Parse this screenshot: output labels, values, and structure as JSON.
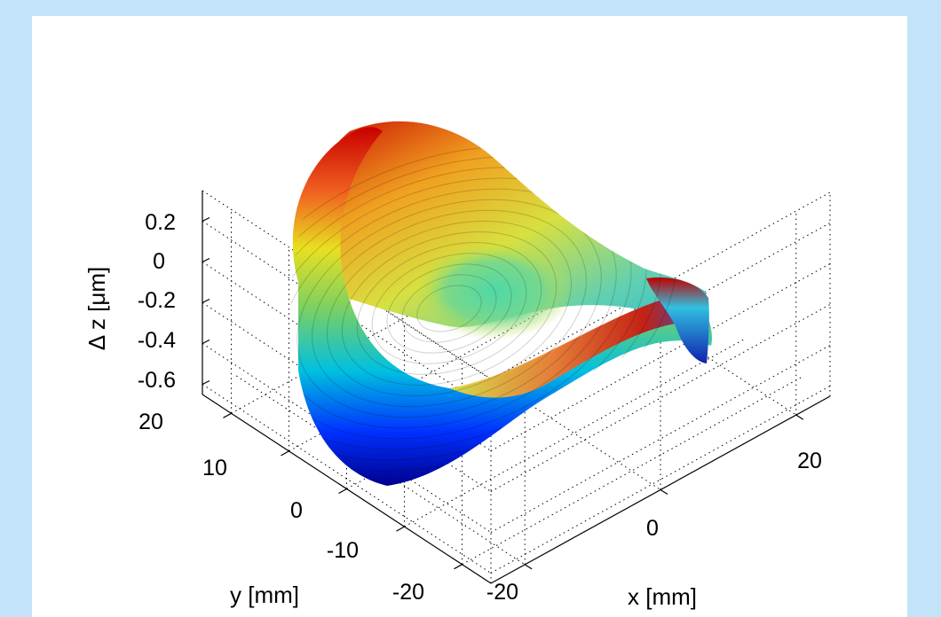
{
  "chart_data": {
    "type": "surface",
    "title": "",
    "xlabel": "x [mm]",
    "ylabel": "y [mm]",
    "zlabel": "Δ z [μm]",
    "x_ticks": [
      {
        "value": -20,
        "label": "-20"
      },
      {
        "value": 0,
        "label": "0"
      },
      {
        "value": 20,
        "label": "20"
      }
    ],
    "y_ticks": [
      {
        "value": -20,
        "label": "-20"
      },
      {
        "value": -10,
        "label": "-10"
      },
      {
        "value": 0,
        "label": "0"
      },
      {
        "value": 10,
        "label": "10"
      },
      {
        "value": 20,
        "label": "20"
      }
    ],
    "z_ticks": [
      {
        "value": -0.6,
        "label": "-0.6"
      },
      {
        "value": -0.4,
        "label": "-0.4"
      },
      {
        "value": -0.2,
        "label": "-0.2"
      },
      {
        "value": 0,
        "label": "0"
      },
      {
        "value": 0.2,
        "label": "0.2"
      }
    ],
    "xlim": [
      -25,
      25
    ],
    "ylim": [
      -25,
      25
    ],
    "zlim": [
      -0.65,
      0.35
    ],
    "grid": "dotted",
    "colormap": [
      "#00008f",
      "#0000ff",
      "#00ffff",
      "#ffff00",
      "#ff0000",
      "#800000"
    ],
    "surface_shape": "saddle (astigmatic deformation) over circular aperture",
    "surface_samples": [
      {
        "x": 0,
        "y": 0,
        "z": -0.05
      },
      {
        "x": -22,
        "y": 0,
        "z": 0.3
      },
      {
        "x": 22,
        "y": 0,
        "z": 0.3
      },
      {
        "x": 0,
        "y": -22,
        "z": -0.6
      },
      {
        "x": 0,
        "y": 22,
        "z": -0.6
      }
    ]
  }
}
